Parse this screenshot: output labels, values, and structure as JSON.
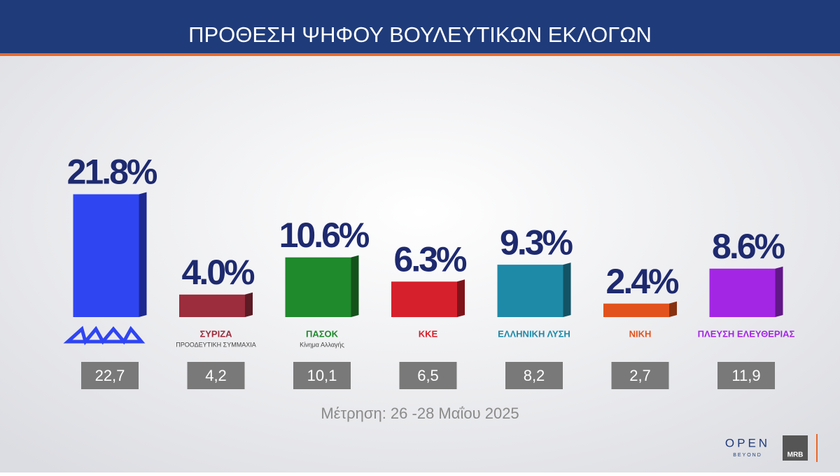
{
  "chart_data": {
    "type": "bar",
    "title": "ΠΡΟΘΕΣΗ ΨΗΦΟΥ ΒΟΥΛΕΥΤΙΚΩΝ ΕΚΛΟΓΩΝ",
    "categories": [
      null,
      "ΣΥΡΙΖΑ",
      "ΠΑΣΟΚ",
      "ΚΚΕ",
      "ΕΛΛΗΝΙΚΗ ΛΥΣΗ",
      "ΝΙΚΗ",
      "ΠΛΕΥΣΗ ΕΛΕΥΘΕΡΙΑΣ"
    ],
    "category_subtitles": [
      null,
      "ΠΡΟΟΔΕΥΤΙΚΗ ΣΥΜΜΑΧΙΑ",
      "Κίνημα Αλλαγής",
      null,
      null,
      null,
      null
    ],
    "values": [
      21.8,
      4.0,
      10.6,
      6.3,
      9.3,
      2.4,
      8.6
    ],
    "value_labels": [
      "21.8%",
      "4.0%",
      "10.6%",
      "6.3%",
      "9.3%",
      "2.4%",
      "8.6%"
    ],
    "colors": [
      "#2f45f2",
      "#9b2d3c",
      "#1f8a2c",
      "#d6202b",
      "#1e8aa8",
      "#e2521c",
      "#a326e4"
    ],
    "previous_values": [
      22.7,
      4.2,
      10.1,
      6.5,
      8.2,
      2.7,
      11.9
    ],
    "previous_value_labels": [
      "22,7",
      "4,2",
      "10,1",
      "6,5",
      "8,2",
      "2,7",
      "11,9"
    ],
    "note": "Μέτρηση: 26 -28 Μαΐου 2025"
  },
  "branding": {
    "channel": "OPEN",
    "channel_sub": "BEYOND",
    "pollster": "MRB"
  }
}
